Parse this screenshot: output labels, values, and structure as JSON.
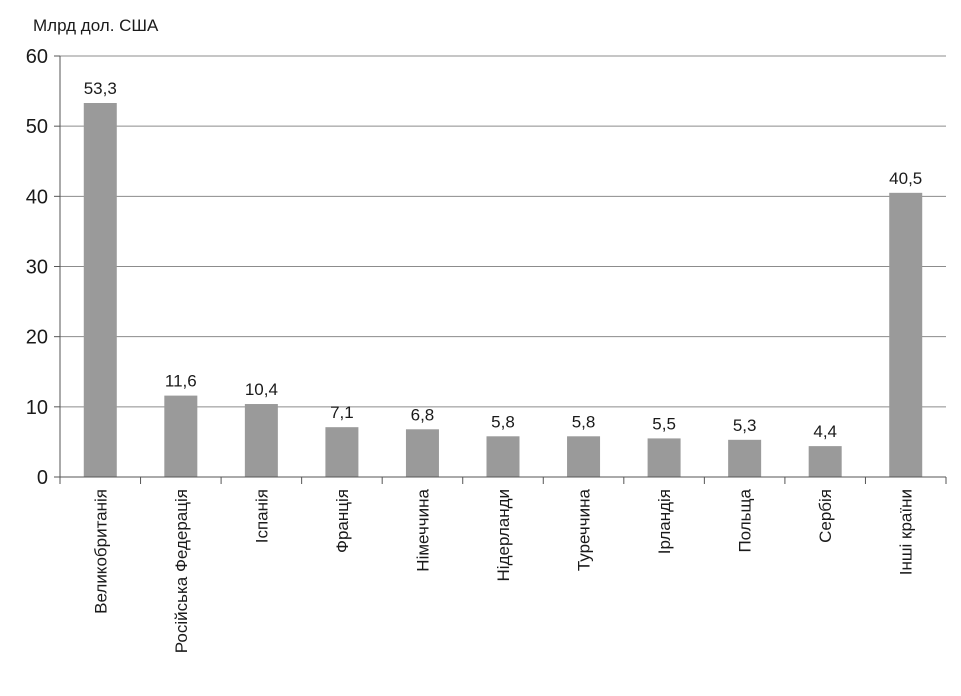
{
  "chart_data": {
    "type": "bar",
    "title": "",
    "unit_label": "Млрд дол. США",
    "xlabel": "",
    "ylabel": "",
    "ylim": [
      0,
      60
    ],
    "yticks": [
      0,
      10,
      20,
      30,
      40,
      50,
      60
    ],
    "grid": "horizontal",
    "legend": "none",
    "bar_color": "#9a9a9a",
    "categories": [
      "Великобританія",
      "Російська Федерація",
      "Іспанія",
      "Франція",
      "Німеччина",
      "Нідерланди",
      "Туреччина",
      "Ірландія",
      "Польща",
      "Сербія",
      "Інші країни"
    ],
    "values": [
      53.3,
      11.6,
      10.4,
      7.1,
      6.8,
      5.8,
      5.8,
      5.5,
      5.3,
      4.4,
      40.5
    ],
    "data_labels": [
      "53,3",
      "11,6",
      "10,4",
      "7,1",
      "6,8",
      "5,8",
      "5,8",
      "5,5",
      "5,3",
      "4,4",
      "40,5"
    ]
  }
}
